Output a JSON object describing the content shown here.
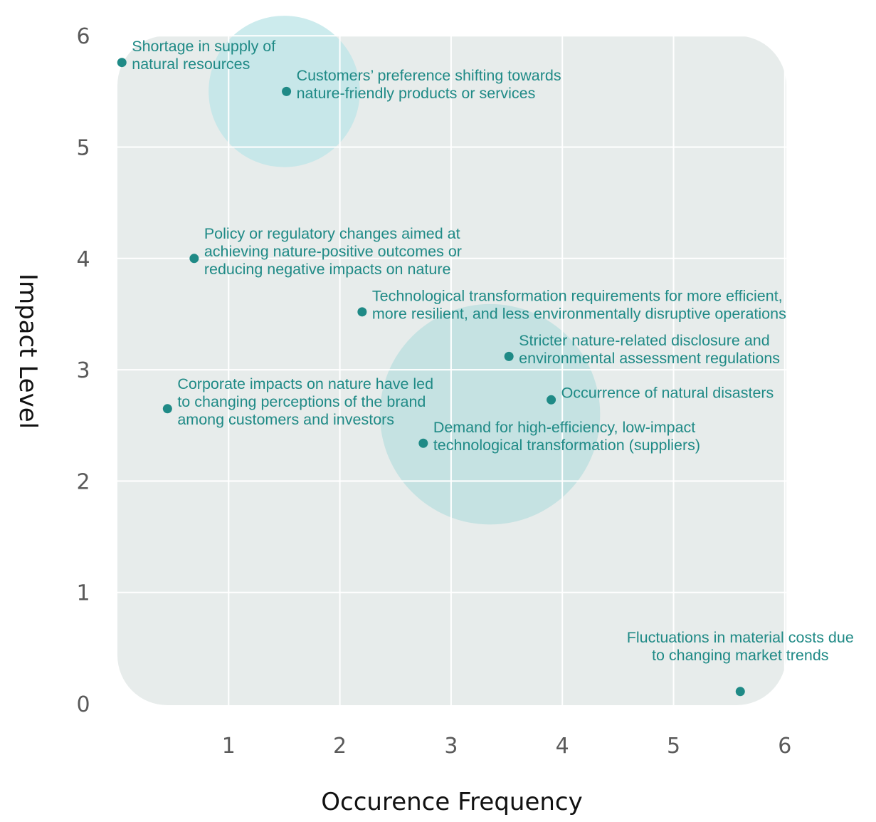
{
  "chart_data": {
    "type": "scatter",
    "xlabel": "Occurence Frequency",
    "ylabel": "Impact Level",
    "xlim": [
      0,
      6
    ],
    "ylim": [
      0,
      6
    ],
    "x_ticks": [
      1,
      2,
      3,
      4,
      5,
      6
    ],
    "y_ticks": [
      0,
      1,
      2,
      3,
      4,
      5,
      6
    ],
    "grid": true,
    "colors": {
      "point": "#1f8a86",
      "label": "#1f8a86",
      "panel": "#e7eceb",
      "gridline": "#ffffff",
      "bubble_highlight": "#bfe6e8",
      "bubble": "#bde0e0"
    },
    "highlight_bubbles": [
      {
        "x": 1.5,
        "y": 5.5,
        "r_data": 0.68,
        "color": "#bfe6e8"
      },
      {
        "x": 3.35,
        "y": 2.6,
        "r_data": 0.99,
        "color": "#bde0e0"
      }
    ],
    "points": [
      {
        "x": 0.04,
        "y": 5.76,
        "lines": [
          "Shortage in supply of",
          "natural resources"
        ],
        "align": "right"
      },
      {
        "x": 1.52,
        "y": 5.5,
        "lines": [
          "Customers’ preference shifting towards",
          "nature-friendly products or services"
        ],
        "align": "right"
      },
      {
        "x": 0.69,
        "y": 4.0,
        "lines": [
          "Policy or regulatory changes aimed at",
          "achieving nature-positive outcomes or",
          "reducing negative impacts on nature"
        ],
        "align": "right"
      },
      {
        "x": 2.2,
        "y": 3.52,
        "lines": [
          "Technological transformation requirements for more efficient,",
          "more resilient, and less environmentally disruptive operations"
        ],
        "align": "right"
      },
      {
        "x": 3.52,
        "y": 3.12,
        "lines": [
          "Stricter nature-related disclosure and",
          "environmental assessment regulations"
        ],
        "align": "right"
      },
      {
        "x": 3.9,
        "y": 2.73,
        "lines": [
          "Occurrence of natural disasters"
        ],
        "align": "right"
      },
      {
        "x": 0.45,
        "y": 2.65,
        "lines": [
          "Corporate impacts on nature have led",
          "to changing perceptions of the brand",
          "among customers and investors"
        ],
        "align": "right"
      },
      {
        "x": 2.75,
        "y": 2.34,
        "lines": [
          "Demand for high-efficiency, low-impact",
          "technological transformation (suppliers)"
        ],
        "align": "right"
      },
      {
        "x": 5.6,
        "y": 0.11,
        "lines": [
          "Fluctuations in material costs due",
          "to changing market trends"
        ],
        "align": "above"
      }
    ]
  }
}
